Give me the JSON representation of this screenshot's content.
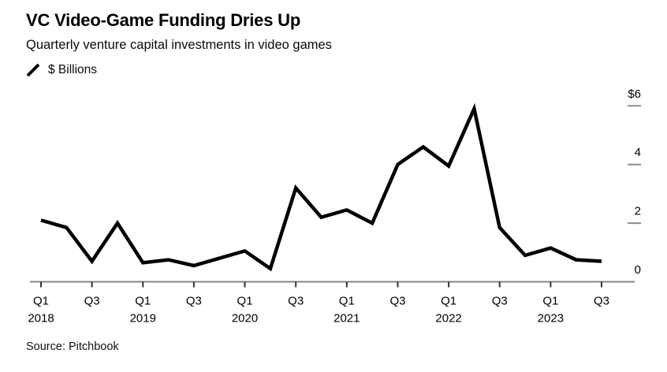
{
  "header": {
    "title": "VC Video-Game Funding Dries Up",
    "subtitle": "Quarterly venture capital investments in video games"
  },
  "legend": {
    "series_label": "$ Billions"
  },
  "source": {
    "text": "Source: Pitchbook"
  },
  "colors": {
    "background": "#ffffff",
    "line": "#000000",
    "axis_line": "#858585",
    "tick_mark": "#333333",
    "grid_dash": "#8c8c8c",
    "label_text": "#000000"
  },
  "chart_data": {
    "type": "line",
    "title": "VC Video-Game Funding Dries Up",
    "subtitle": "Quarterly venture capital investments in video games",
    "unit": "$ Billions",
    "x": [
      "Q1 2018",
      "Q2 2018",
      "Q3 2018",
      "Q4 2018",
      "Q1 2019",
      "Q2 2019",
      "Q3 2019",
      "Q4 2019",
      "Q1 2020",
      "Q2 2020",
      "Q3 2020",
      "Q4 2020",
      "Q1 2021",
      "Q2 2021",
      "Q3 2021",
      "Q4 2021",
      "Q1 2022",
      "Q2 2022",
      "Q3 2022",
      "Q4 2022",
      "Q1 2023",
      "Q2 2023",
      "Q3 2023"
    ],
    "series": [
      {
        "name": "$ Billions",
        "values": [
          2.1,
          1.85,
          0.7,
          2.0,
          0.65,
          0.75,
          0.55,
          0.8,
          1.05,
          0.45,
          3.2,
          2.2,
          2.45,
          2.0,
          4.0,
          4.6,
          3.95,
          5.9,
          1.85,
          0.9,
          1.15,
          0.75,
          0.7
        ]
      }
    ],
    "x_tick_labels": [
      {
        "index": 0,
        "label": "Q1",
        "year": "2018"
      },
      {
        "index": 2,
        "label": "Q3",
        "year": ""
      },
      {
        "index": 4,
        "label": "Q1",
        "year": "2019"
      },
      {
        "index": 6,
        "label": "Q3",
        "year": ""
      },
      {
        "index": 8,
        "label": "Q1",
        "year": "2020"
      },
      {
        "index": 10,
        "label": "Q3",
        "year": ""
      },
      {
        "index": 12,
        "label": "Q1",
        "year": "2021"
      },
      {
        "index": 14,
        "label": "Q3",
        "year": ""
      },
      {
        "index": 16,
        "label": "Q1",
        "year": "2022"
      },
      {
        "index": 18,
        "label": "Q3",
        "year": ""
      },
      {
        "index": 20,
        "label": "Q1",
        "year": "2023"
      },
      {
        "index": 22,
        "label": "Q3",
        "year": ""
      }
    ],
    "y_ticks": [
      {
        "label": "$6",
        "value": 6,
        "dash": true
      },
      {
        "label": "4",
        "value": 4,
        "dash": true
      },
      {
        "label": "2",
        "value": 2,
        "dash": true
      },
      {
        "label": "0",
        "value": 0,
        "dash": false
      }
    ],
    "ylim": [
      0,
      6
    ],
    "grid": "right-side-dashes-only",
    "legend_position": "top-left"
  }
}
